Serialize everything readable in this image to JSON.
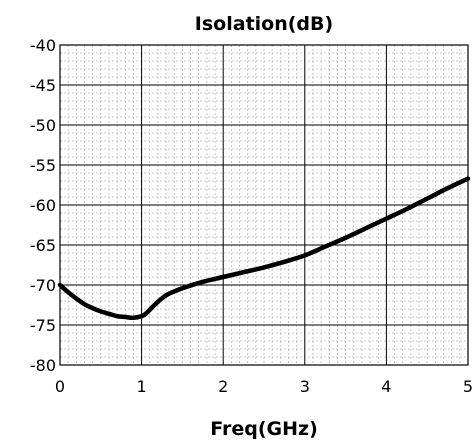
{
  "chart_data": {
    "type": "line",
    "title": "Isolation(dB)",
    "xlabel": "Freq(GHz)",
    "ylabel": "",
    "xlim": [
      0,
      5
    ],
    "ylim": [
      -80,
      -40
    ],
    "x_ticks": [
      "0",
      "1",
      "2",
      "3",
      "4",
      "5"
    ],
    "y_ticks": [
      "-40",
      "-45",
      "-50",
      "-55",
      "-60",
      "-65",
      "-70",
      "-75",
      "-80"
    ],
    "grid": true,
    "legend": "none",
    "series": [
      {
        "color": "#000000",
        "x": [
          0,
          0.1,
          0.2,
          0.3,
          0.4,
          0.5,
          0.6,
          0.7,
          0.8,
          0.9,
          1.0,
          1.05,
          1.1,
          1.2,
          1.3,
          1.4,
          1.5,
          1.75,
          2.0,
          2.25,
          2.5,
          2.75,
          3.0,
          3.25,
          3.5,
          3.75,
          4.0,
          4.25,
          4.5,
          4.75,
          5.0
        ],
        "y": [
          -70.0,
          -70.9,
          -71.7,
          -72.4,
          -72.9,
          -73.3,
          -73.6,
          -73.9,
          -74.0,
          -74.1,
          -73.9,
          -73.6,
          -73.1,
          -72.1,
          -71.3,
          -70.8,
          -70.4,
          -69.6,
          -69.0,
          -68.4,
          -67.8,
          -67.1,
          -66.3,
          -65.2,
          -64.1,
          -62.9,
          -61.7,
          -60.5,
          -59.2,
          -57.9,
          -56.7
        ]
      }
    ]
  }
}
